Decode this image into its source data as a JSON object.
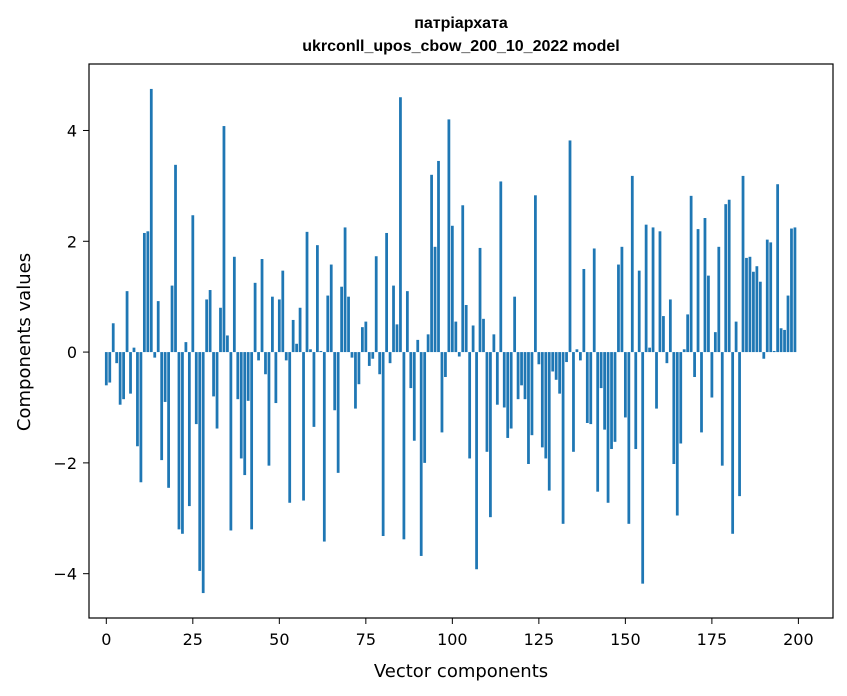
{
  "chart_data": {
    "type": "bar",
    "title_line1": "патріархата",
    "title_line2": "ukrconll_upos_cbow_200_10_2022 model",
    "xlabel": "Vector components",
    "ylabel": "Components values",
    "xlim": [
      -5,
      210
    ],
    "ylim": [
      -4.8,
      5.2
    ],
    "xticks": [
      0,
      25,
      50,
      75,
      100,
      125,
      150,
      175,
      200
    ],
    "xtick_labels": [
      "0",
      "25",
      "50",
      "75",
      "100",
      "125",
      "150",
      "175",
      "200"
    ],
    "yticks": [
      -4,
      -2,
      0,
      2,
      4
    ],
    "ytick_labels": [
      "−4",
      "−2",
      "0",
      "2",
      "4"
    ],
    "bar_color": "#1f77b4",
    "values": [
      -0.6,
      -0.55,
      0.52,
      -0.2,
      -0.95,
      -0.85,
      1.1,
      -0.75,
      0.08,
      -1.7,
      -2.35,
      2.15,
      2.18,
      4.75,
      -0.1,
      0.92,
      -1.95,
      -0.9,
      -2.45,
      1.2,
      3.38,
      -3.2,
      -3.28,
      0.18,
      -2.78,
      2.47,
      -1.3,
      -3.95,
      -4.35,
      0.95,
      1.12,
      -0.8,
      -1.38,
      0.8,
      4.08,
      0.3,
      -3.22,
      1.72,
      -0.85,
      -1.92,
      -2.22,
      -0.88,
      -3.2,
      1.25,
      -0.15,
      1.68,
      -0.4,
      -2.05,
      1.0,
      -0.92,
      0.95,
      1.47,
      -0.15,
      -2.72,
      0.58,
      0.15,
      0.8,
      -2.68,
      2.17,
      0.05,
      -1.35,
      1.93,
      0.02,
      -3.42,
      1.02,
      1.58,
      -1.05,
      -2.18,
      1.18,
      2.25,
      1.0,
      -0.1,
      -1.02,
      -0.58,
      0.45,
      0.55,
      -0.25,
      -0.12,
      1.73,
      -0.4,
      -3.32,
      2.15,
      -0.2,
      1.2,
      0.5,
      4.6,
      -3.38,
      1.1,
      -0.65,
      -1.6,
      0.22,
      -3.68,
      -2.0,
      0.32,
      3.2,
      1.9,
      3.45,
      -1.45,
      -0.45,
      4.2,
      2.28,
      0.55,
      -0.08,
      2.65,
      0.85,
      -1.92,
      0.48,
      -3.92,
      1.88,
      0.6,
      -1.8,
      -2.98,
      0.32,
      -0.95,
      3.08,
      -1.0,
      -1.55,
      -1.38,
      1.0,
      -0.85,
      -0.6,
      -0.85,
      -2.02,
      -1.5,
      2.83,
      -0.22,
      -1.72,
      -1.92,
      -2.5,
      -0.35,
      -0.5,
      -0.75,
      -3.1,
      -0.18,
      3.82,
      -1.8,
      0.05,
      -0.15,
      1.5,
      -1.28,
      -1.3,
      1.87,
      -2.52,
      -0.65,
      -1.4,
      -2.72,
      -1.75,
      -1.62,
      1.58,
      1.9,
      -1.18,
      -3.1,
      3.18,
      -1.75,
      1.47,
      -4.18,
      2.3,
      0.08,
      2.25,
      -1.02,
      2.18,
      0.65,
      -0.2,
      0.95,
      -2.02,
      -2.95,
      -1.65,
      0.05,
      0.68,
      2.82,
      -0.45,
      2.22,
      -1.45,
      2.42,
      1.38,
      -0.82,
      0.36,
      1.9,
      -2.05,
      2.67,
      2.75,
      -3.28,
      0.55,
      -2.6,
      3.18,
      1.7,
      1.72,
      1.45,
      1.55,
      1.27,
      -0.12,
      2.03,
      1.98,
      0.02,
      3.03,
      0.43,
      0.4,
      1.02,
      2.23,
      2.25
    ]
  }
}
